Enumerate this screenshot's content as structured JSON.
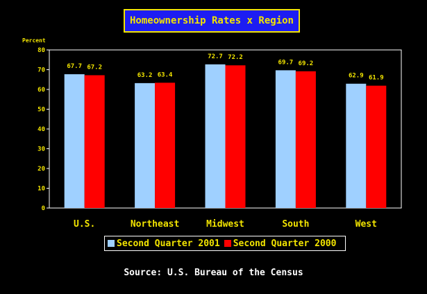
{
  "chart_data": {
    "type": "bar",
    "title": "Homeownership Rates x Region",
    "ylabel": "Percent",
    "ylim": [
      0,
      80
    ],
    "yticks": [
      0,
      10,
      20,
      30,
      40,
      50,
      60,
      70,
      80
    ],
    "categories": [
      "U.S.",
      "Northeast",
      "Midwest",
      "South",
      "West"
    ],
    "series": [
      {
        "name": "Second Quarter 2001",
        "values": [
          67.7,
          63.2,
          72.7,
          69.7,
          62.9
        ],
        "color": "#9fd0ff"
      },
      {
        "name": "Second Quarter 2000",
        "values": [
          67.2,
          63.4,
          72.2,
          69.2,
          61.9
        ],
        "color": "#ff0000"
      }
    ],
    "value_labels": [
      [
        "67.7",
        "63.2",
        "72.7",
        "69.7",
        "62.9"
      ],
      [
        "67.2",
        "63.4",
        "72.2",
        "69.2",
        "61.9"
      ]
    ],
    "grid": false,
    "legend_position": "bottom"
  },
  "source": "Source: U.S. Bureau of the Census",
  "colors": {
    "background": "#000000",
    "text_accent": "#f2e400",
    "title_bg": "#1d1df2",
    "axis": "#ffffff"
  }
}
